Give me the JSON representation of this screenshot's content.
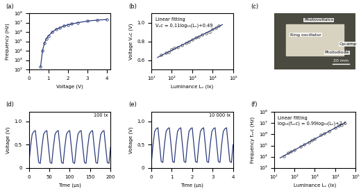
{
  "chart_data": [
    {
      "panel": "(a)",
      "type": "line",
      "x_label": "Voltage (V)",
      "y_label": "Frequency (Hz)",
      "log": "y",
      "xlim": [
        0,
        4.2
      ],
      "ylim": [
        100,
        100000000
      ],
      "xticks": [
        0,
        1,
        2,
        3,
        4
      ],
      "yticks": [
        {
          "value": 100,
          "label": "10²"
        },
        {
          "value": 1000,
          "label": "10³"
        },
        {
          "value": 10000,
          "label": "10⁴"
        },
        {
          "value": 100000,
          "label": "10⁵"
        },
        {
          "value": 1000000,
          "label": "10⁶"
        },
        {
          "value": 10000000,
          "label": "10⁷"
        },
        {
          "value": 100000000,
          "label": "10⁸"
        }
      ],
      "series": [
        {
          "type": "line",
          "color": "#2b3a7a",
          "marker": "o",
          "line_style": "solid",
          "x": [
            0.6,
            0.7,
            0.8,
            0.9,
            1.0,
            1.2,
            1.4,
            1.6,
            1.8,
            2.0,
            2.2,
            2.5,
            3.0,
            3.5,
            4.0
          ],
          "values": [
            200,
            10000,
            70000,
            200000,
            400000,
            1000000,
            2000000,
            3000000,
            4500000,
            6000000,
            7500000,
            10000000,
            15000000,
            19000000,
            22000000
          ]
        }
      ]
    },
    {
      "panel": "(b)",
      "type": "scatter",
      "x_label": "Luminance Lᵥ (lx)",
      "y_label": "Voltage Vₒc (V)",
      "log": "x",
      "xlim": [
        10,
        100000
      ],
      "ylim": [
        0.5,
        1.1
      ],
      "xticks": [
        {
          "value": 10,
          "label": "10¹"
        },
        {
          "value": 100,
          "label": "10²"
        },
        {
          "value": 1000,
          "label": "10³"
        },
        {
          "value": 10000,
          "label": "10⁴"
        },
        {
          "value": 100000,
          "label": "10⁵"
        }
      ],
      "yticks": [
        0.6,
        0.8,
        {
          "value": 1.0,
          "label": "1.0"
        }
      ],
      "annotations": [
        "Linear fitting",
        "Vₒc = 0.11log₁₀(Lᵥ)+0.49"
      ],
      "series": [
        {
          "type": "scatter",
          "color": "#555555",
          "marker": "o",
          "x": [
            30,
            50,
            70,
            100,
            130,
            200,
            300,
            500,
            700,
            1000,
            1500,
            2000,
            3000,
            5000,
            7000,
            10000,
            15000,
            20000
          ],
          "values": [
            0.66,
            0.68,
            0.69,
            0.72,
            0.73,
            0.74,
            0.76,
            0.78,
            0.8,
            0.82,
            0.84,
            0.85,
            0.87,
            0.89,
            0.9,
            0.93,
            0.95,
            0.97
          ]
        },
        {
          "type": "line",
          "color": "#2b3a7a",
          "line_style": "solid",
          "x": [
            20,
            30000
          ],
          "values": [
            0.63,
            0.98
          ]
        }
      ]
    },
    {
      "panel": "(c)",
      "type": "image",
      "labels": [
        "Ring oscillator",
        "Photovoltaics",
        "Op-amp",
        "Photodiode"
      ],
      "scale_bar": "20 mm"
    },
    {
      "panel": "(d)",
      "type": "line",
      "x_label": "Time (µs)",
      "y_label": "Voltage (V)",
      "xlim": [
        0,
        200
      ],
      "ylim": [
        0,
        1.2
      ],
      "xticks": [
        0,
        50,
        100,
        150,
        200
      ],
      "yticks": [
        0,
        0.5,
        {
          "value": 1.0,
          "label": "1.0"
        }
      ],
      "annotations": [
        "100 lx"
      ],
      "series": [
        {
          "type": "line",
          "color": "#2b3a7a",
          "line_style": "solid",
          "x": [
            0,
            4,
            8,
            12,
            16,
            20,
            24,
            28,
            32,
            36,
            40,
            44,
            48,
            52,
            56,
            60,
            64,
            68,
            72,
            76,
            80,
            84,
            88,
            92,
            96,
            100,
            104,
            108,
            112,
            116,
            120,
            124,
            128,
            132,
            136,
            140,
            144,
            148,
            152,
            156,
            160,
            164,
            168,
            172,
            176,
            180,
            184,
            188,
            192,
            196,
            200
          ],
          "values": [
            0.1,
            0.45,
            0.72,
            0.78,
            0.8,
            0.45,
            0.12,
            0.1,
            0.45,
            0.72,
            0.78,
            0.8,
            0.45,
            0.12,
            0.1,
            0.45,
            0.72,
            0.78,
            0.8,
            0.45,
            0.12,
            0.1,
            0.45,
            0.72,
            0.78,
            0.8,
            0.45,
            0.12,
            0.1,
            0.45,
            0.72,
            0.78,
            0.8,
            0.45,
            0.12,
            0.1,
            0.45,
            0.72,
            0.78,
            0.8,
            0.45,
            0.12,
            0.1,
            0.45,
            0.72,
            0.78,
            0.8,
            0.45,
            0.12,
            0.1,
            0.45
          ]
        }
      ]
    },
    {
      "panel": "(e)",
      "type": "line",
      "x_label": "Time (µs)",
      "y_label": "Voltage (V)",
      "xlim": [
        0,
        4
      ],
      "ylim": [
        0,
        1.2
      ],
      "xticks": [
        0,
        1,
        2,
        3,
        4
      ],
      "yticks": [
        0,
        0.5,
        {
          "value": 1.0,
          "label": "1.0"
        }
      ],
      "annotations": [
        "10 000 lx"
      ],
      "series": [
        {
          "type": "line",
          "color": "#2b3a7a",
          "line_style": "solid",
          "x": [
            0,
            0.08,
            0.16,
            0.24,
            0.32,
            0.4,
            0.48,
            0.56,
            0.64,
            0.72,
            0.8,
            0.88,
            0.96,
            1.04,
            1.12,
            1.2,
            1.28,
            1.36,
            1.44,
            1.52,
            1.6,
            1.68,
            1.76,
            1.84,
            1.92,
            2.0,
            2.08,
            2.16,
            2.24,
            2.32,
            2.4,
            2.48,
            2.56,
            2.64,
            2.72,
            2.8,
            2.88,
            2.96,
            3.04,
            3.12,
            3.2,
            3.28,
            3.36,
            3.44,
            3.52,
            3.6,
            3.68,
            3.76,
            3.84,
            3.92,
            4.0
          ],
          "values": [
            0.12,
            0.5,
            0.78,
            0.84,
            0.86,
            0.5,
            0.14,
            0.12,
            0.5,
            0.78,
            0.84,
            0.86,
            0.5,
            0.14,
            0.12,
            0.5,
            0.78,
            0.84,
            0.86,
            0.5,
            0.14,
            0.12,
            0.5,
            0.78,
            0.84,
            0.86,
            0.5,
            0.14,
            0.12,
            0.5,
            0.78,
            0.84,
            0.86,
            0.5,
            0.14,
            0.12,
            0.5,
            0.78,
            0.84,
            0.86,
            0.5,
            0.14,
            0.12,
            0.5,
            0.78,
            0.84,
            0.86,
            0.5,
            0.14,
            0.12,
            0.5
          ]
        }
      ]
    },
    {
      "panel": "(f)",
      "type": "scatter",
      "x_label": "Luminance Lᵥ (lx)",
      "y_label": "Frequency fₒₛc (Hz)",
      "log": true,
      "xlim": [
        10,
        100000
      ],
      "ylim": [
        1000,
        100000000
      ],
      "xticks": [
        {
          "value": 10,
          "label": "10¹"
        },
        {
          "value": 100,
          "label": "10²"
        },
        {
          "value": 1000,
          "label": "10³"
        },
        {
          "value": 10000,
          "label": "10⁴"
        },
        {
          "value": 100000,
          "label": "10⁵"
        }
      ],
      "yticks": [
        {
          "value": 1000,
          "label": "10³"
        },
        {
          "value": 10000,
          "label": "10⁴"
        },
        {
          "value": 100000,
          "label": "10⁵"
        },
        {
          "value": 1000000,
          "label": "10⁶"
        },
        {
          "value": 10000000,
          "label": "10⁷"
        },
        {
          "value": 100000000,
          "label": "10⁸"
        }
      ],
      "annotations": [
        "Linear fitting",
        "log₁₀(fₒₛc) = 0.99log₁₀(Lᵥ)+2.6"
      ],
      "series": [
        {
          "type": "scatter",
          "color": "#555555",
          "marker": "o",
          "x": [
            30,
            50,
            70,
            100,
            200,
            300,
            500,
            700,
            1000,
            2000,
            3000,
            5000,
            10000,
            15000,
            20000
          ],
          "values": [
            12000,
            22000,
            30000,
            40000,
            85000,
            120000,
            200000,
            300000,
            400000,
            900000,
            1200000,
            2000000,
            4000000,
            5500000,
            7000000
          ]
        },
        {
          "type": "line",
          "color": "#2b3a7a",
          "line_style": "solid",
          "x": [
            20,
            30000
          ],
          "values": [
            8000,
            11000000
          ]
        }
      ]
    }
  ]
}
